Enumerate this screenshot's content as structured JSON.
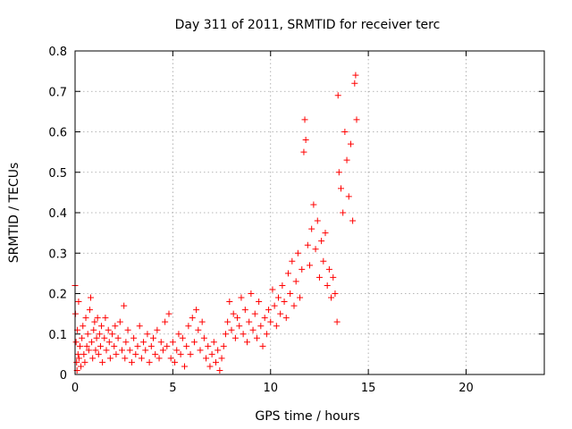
{
  "chart_data": {
    "type": "scatter",
    "title": "Day 311 of 2011, SRMTID for receiver terc",
    "xlabel": "GPS time / hours",
    "ylabel": "SRMTID / TECUs",
    "xlim": [
      0,
      24
    ],
    "ylim": [
      0,
      0.8
    ],
    "xticks": [
      0,
      5,
      10,
      15,
      20
    ],
    "xtick_labels": [
      "0",
      "5",
      "10",
      "15",
      "20"
    ],
    "yticks": [
      0,
      0.1,
      0.2,
      0.3,
      0.4,
      0.5,
      0.6,
      0.7,
      0.8
    ],
    "ytick_labels": [
      "0",
      "0.1",
      "0.2",
      "0.3",
      "0.4",
      "0.5",
      "0.6",
      "0.7",
      "0.8"
    ],
    "grid": true,
    "marker": "+",
    "color": "#ff0000",
    "series": [
      {
        "name": "SRMTID",
        "points": [
          [
            0.0,
            0.22
          ],
          [
            0.02,
            0.15
          ],
          [
            0.05,
            0.08
          ],
          [
            0.08,
            0.03
          ],
          [
            0.1,
            0.01
          ],
          [
            0.12,
            0.11
          ],
          [
            0.15,
            0.05
          ],
          [
            0.18,
            0.18
          ],
          [
            0.2,
            0.04
          ],
          [
            0.25,
            0.07
          ],
          [
            0.3,
            0.02
          ],
          [
            0.35,
            0.09
          ],
          [
            0.4,
            0.12
          ],
          [
            0.45,
            0.05
          ],
          [
            0.5,
            0.03
          ],
          [
            0.55,
            0.14
          ],
          [
            0.6,
            0.07
          ],
          [
            0.65,
            0.1
          ],
          [
            0.7,
            0.06
          ],
          [
            0.75,
            0.16
          ],
          [
            0.8,
            0.19
          ],
          [
            0.85,
            0.08
          ],
          [
            0.9,
            0.04
          ],
          [
            0.95,
            0.11
          ],
          [
            1.0,
            0.13
          ],
          [
            1.05,
            0.06
          ],
          [
            1.1,
            0.09
          ],
          [
            1.15,
            0.14
          ],
          [
            1.2,
            0.05
          ],
          [
            1.25,
            0.1
          ],
          [
            1.3,
            0.07
          ],
          [
            1.35,
            0.12
          ],
          [
            1.4,
            0.03
          ],
          [
            1.5,
            0.09
          ],
          [
            1.55,
            0.14
          ],
          [
            1.6,
            0.06
          ],
          [
            1.7,
            0.11
          ],
          [
            1.75,
            0.08
          ],
          [
            1.8,
            0.04
          ],
          [
            1.9,
            0.1
          ],
          [
            2.0,
            0.07
          ],
          [
            2.05,
            0.12
          ],
          [
            2.1,
            0.05
          ],
          [
            2.2,
            0.09
          ],
          [
            2.3,
            0.13
          ],
          [
            2.4,
            0.06
          ],
          [
            2.5,
            0.17
          ],
          [
            2.55,
            0.04
          ],
          [
            2.6,
            0.08
          ],
          [
            2.7,
            0.11
          ],
          [
            2.8,
            0.06
          ],
          [
            2.9,
            0.03
          ],
          [
            3.0,
            0.09
          ],
          [
            3.1,
            0.05
          ],
          [
            3.2,
            0.07
          ],
          [
            3.3,
            0.12
          ],
          [
            3.4,
            0.04
          ],
          [
            3.5,
            0.08
          ],
          [
            3.6,
            0.06
          ],
          [
            3.7,
            0.1
          ],
          [
            3.8,
            0.03
          ],
          [
            3.9,
            0.07
          ],
          [
            4.0,
            0.09
          ],
          [
            4.1,
            0.05
          ],
          [
            4.2,
            0.11
          ],
          [
            4.3,
            0.04
          ],
          [
            4.4,
            0.08
          ],
          [
            4.5,
            0.06
          ],
          [
            4.6,
            0.13
          ],
          [
            4.7,
            0.07
          ],
          [
            4.8,
            0.15
          ],
          [
            4.9,
            0.04
          ],
          [
            5.0,
            0.08
          ],
          [
            5.1,
            0.03
          ],
          [
            5.2,
            0.06
          ],
          [
            5.3,
            0.1
          ],
          [
            5.4,
            0.05
          ],
          [
            5.5,
            0.09
          ],
          [
            5.6,
            0.02
          ],
          [
            5.7,
            0.07
          ],
          [
            5.8,
            0.12
          ],
          [
            5.9,
            0.05
          ],
          [
            6.0,
            0.14
          ],
          [
            6.1,
            0.08
          ],
          [
            6.2,
            0.16
          ],
          [
            6.3,
            0.11
          ],
          [
            6.4,
            0.06
          ],
          [
            6.5,
            0.13
          ],
          [
            6.6,
            0.09
          ],
          [
            6.7,
            0.04
          ],
          [
            6.8,
            0.07
          ],
          [
            6.9,
            0.02
          ],
          [
            7.0,
            0.05
          ],
          [
            7.1,
            0.08
          ],
          [
            7.2,
            0.03
          ],
          [
            7.3,
            0.06
          ],
          [
            7.4,
            0.01
          ],
          [
            7.5,
            0.04
          ],
          [
            7.6,
            0.07
          ],
          [
            7.7,
            0.1
          ],
          [
            7.8,
            0.13
          ],
          [
            7.9,
            0.18
          ],
          [
            8.0,
            0.11
          ],
          [
            8.1,
            0.15
          ],
          [
            8.2,
            0.09
          ],
          [
            8.3,
            0.14
          ],
          [
            8.4,
            0.12
          ],
          [
            8.5,
            0.19
          ],
          [
            8.6,
            0.1
          ],
          [
            8.7,
            0.16
          ],
          [
            8.8,
            0.08
          ],
          [
            8.9,
            0.13
          ],
          [
            9.0,
            0.2
          ],
          [
            9.1,
            0.11
          ],
          [
            9.2,
            0.15
          ],
          [
            9.3,
            0.09
          ],
          [
            9.4,
            0.18
          ],
          [
            9.5,
            0.12
          ],
          [
            9.6,
            0.07
          ],
          [
            9.7,
            0.14
          ],
          [
            9.8,
            0.1
          ],
          [
            9.9,
            0.16
          ],
          [
            10.0,
            0.13
          ],
          [
            10.1,
            0.21
          ],
          [
            10.2,
            0.17
          ],
          [
            10.3,
            0.12
          ],
          [
            10.4,
            0.19
          ],
          [
            10.5,
            0.15
          ],
          [
            10.6,
            0.22
          ],
          [
            10.7,
            0.18
          ],
          [
            10.8,
            0.14
          ],
          [
            10.9,
            0.25
          ],
          [
            11.0,
            0.2
          ],
          [
            11.1,
            0.28
          ],
          [
            11.2,
            0.17
          ],
          [
            11.3,
            0.23
          ],
          [
            11.4,
            0.3
          ],
          [
            11.5,
            0.19
          ],
          [
            11.6,
            0.26
          ],
          [
            11.7,
            0.55
          ],
          [
            11.75,
            0.63
          ],
          [
            11.8,
            0.58
          ],
          [
            11.9,
            0.32
          ],
          [
            12.0,
            0.27
          ],
          [
            12.1,
            0.36
          ],
          [
            12.2,
            0.42
          ],
          [
            12.3,
            0.31
          ],
          [
            12.4,
            0.38
          ],
          [
            12.5,
            0.24
          ],
          [
            12.6,
            0.33
          ],
          [
            12.7,
            0.28
          ],
          [
            12.8,
            0.35
          ],
          [
            12.9,
            0.22
          ],
          [
            13.0,
            0.26
          ],
          [
            13.1,
            0.19
          ],
          [
            13.2,
            0.24
          ],
          [
            13.3,
            0.2
          ],
          [
            13.4,
            0.13
          ],
          [
            13.45,
            0.69
          ],
          [
            13.5,
            0.5
          ],
          [
            13.6,
            0.46
          ],
          [
            13.7,
            0.4
          ],
          [
            13.8,
            0.6
          ],
          [
            13.9,
            0.53
          ],
          [
            14.0,
            0.44
          ],
          [
            14.1,
            0.57
          ],
          [
            14.2,
            0.38
          ],
          [
            14.3,
            0.72
          ],
          [
            14.35,
            0.74
          ],
          [
            14.4,
            0.63
          ]
        ]
      }
    ]
  }
}
